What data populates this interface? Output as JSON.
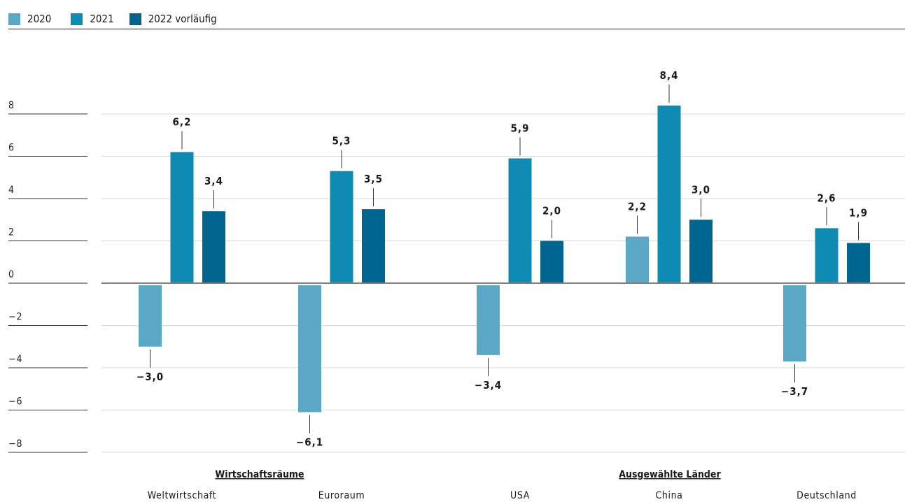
{
  "chart_data": {
    "type": "bar",
    "categories": [
      "Weltwirtschaft",
      "Euroraum",
      "USA",
      "China",
      "Deutschland"
    ],
    "groups": [
      {
        "label": "Wirtschaftsräume",
        "categories": [
          "Weltwirtschaft",
          "Euroraum"
        ]
      },
      {
        "label": "Ausgewählte Länder",
        "categories": [
          "USA",
          "China",
          "Deutschland"
        ]
      }
    ],
    "series": [
      {
        "name": "2020",
        "color": "#5ba7c6",
        "values": [
          -3.0,
          -6.1,
          -3.4,
          2.2,
          -3.7
        ],
        "labels": [
          "−3,0",
          "−6,1",
          "−3,4",
          "2,2",
          "−3,7"
        ]
      },
      {
        "name": "2021",
        "color": "#0f8ab3",
        "values": [
          6.2,
          5.3,
          5.9,
          8.4,
          2.6
        ],
        "labels": [
          "6,2",
          "5,3",
          "5,9",
          "8,4",
          "2,6"
        ]
      },
      {
        "name": "2022 vorläufig",
        "color": "#006690",
        "values": [
          3.4,
          3.5,
          2.0,
          3.0,
          1.9
        ],
        "labels": [
          "3,4",
          "3,5",
          "2,0",
          "3,0",
          "1,9"
        ]
      }
    ],
    "yticks": [
      8,
      6,
      4,
      2,
      0,
      -2,
      -4,
      -6,
      -8
    ],
    "ytick_labels": [
      "8",
      "6",
      "4",
      "2",
      "0",
      "−2",
      "−4",
      "−6",
      "−8"
    ],
    "ylim": [
      -8,
      8
    ],
    "grid": true,
    "legend_position": "top-left"
  }
}
